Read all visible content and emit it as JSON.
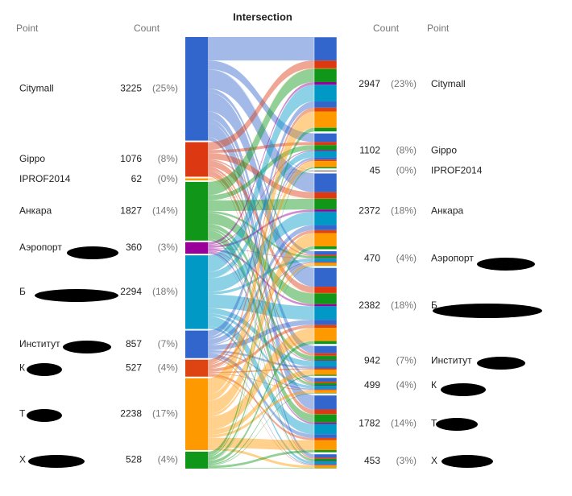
{
  "title": "Intersection",
  "headers": {
    "left_point": "Point",
    "left_count": "Count",
    "right_count": "Count",
    "right_point": "Point"
  },
  "left": [
    {
      "name": "Citymall",
      "count": 3225,
      "percent": "(25%)",
      "color": "#3366cc"
    },
    {
      "name": "Gippo",
      "count": 1076,
      "percent": "(8%)",
      "color": "#dc3912"
    },
    {
      "name": "IPROF2014",
      "count": 62,
      "percent": "(0%)",
      "color": "#ff9900"
    },
    {
      "name": "Анкара",
      "count": 1827,
      "percent": "(14%)",
      "color": "#109618"
    },
    {
      "name": "Аэропорт",
      "count": 360,
      "percent": "(3%)",
      "color": "#990099"
    },
    {
      "name": "Б",
      "count": 2294,
      "percent": "(18%)",
      "color": "#0099c6"
    },
    {
      "name": "Институт",
      "count": 857,
      "percent": "(7%)",
      "color": "#3366cc"
    },
    {
      "name": "К",
      "count": 527,
      "percent": "(4%)",
      "color": "#dd4411"
    },
    {
      "name": "Т",
      "count": 2238,
      "percent": "(17%)",
      "color": "#ff9900"
    },
    {
      "name": "Х",
      "count": 528,
      "percent": "(4%)",
      "color": "#109618"
    }
  ],
  "right": [
    {
      "name": "Citymall",
      "count": 2947,
      "percent": "(23%)"
    },
    {
      "name": "Gippo",
      "count": 1102,
      "percent": "(8%)"
    },
    {
      "name": "IPROF2014",
      "count": 45,
      "percent": "(0%)"
    },
    {
      "name": "Анкара",
      "count": 2372,
      "percent": "(18%)"
    },
    {
      "name": "Аэропорт",
      "count": 470,
      "percent": "(4%)"
    },
    {
      "name": "Б",
      "count": 2382,
      "percent": "(18%)"
    },
    {
      "name": "Институт",
      "count": 942,
      "percent": "(7%)"
    },
    {
      "name": "К",
      "count": 499,
      "percent": "(4%)"
    },
    {
      "name": "Т",
      "count": 1782,
      "percent": "(14%)"
    },
    {
      "name": "Х",
      "count": 453,
      "percent": "(3%)"
    }
  ]
}
